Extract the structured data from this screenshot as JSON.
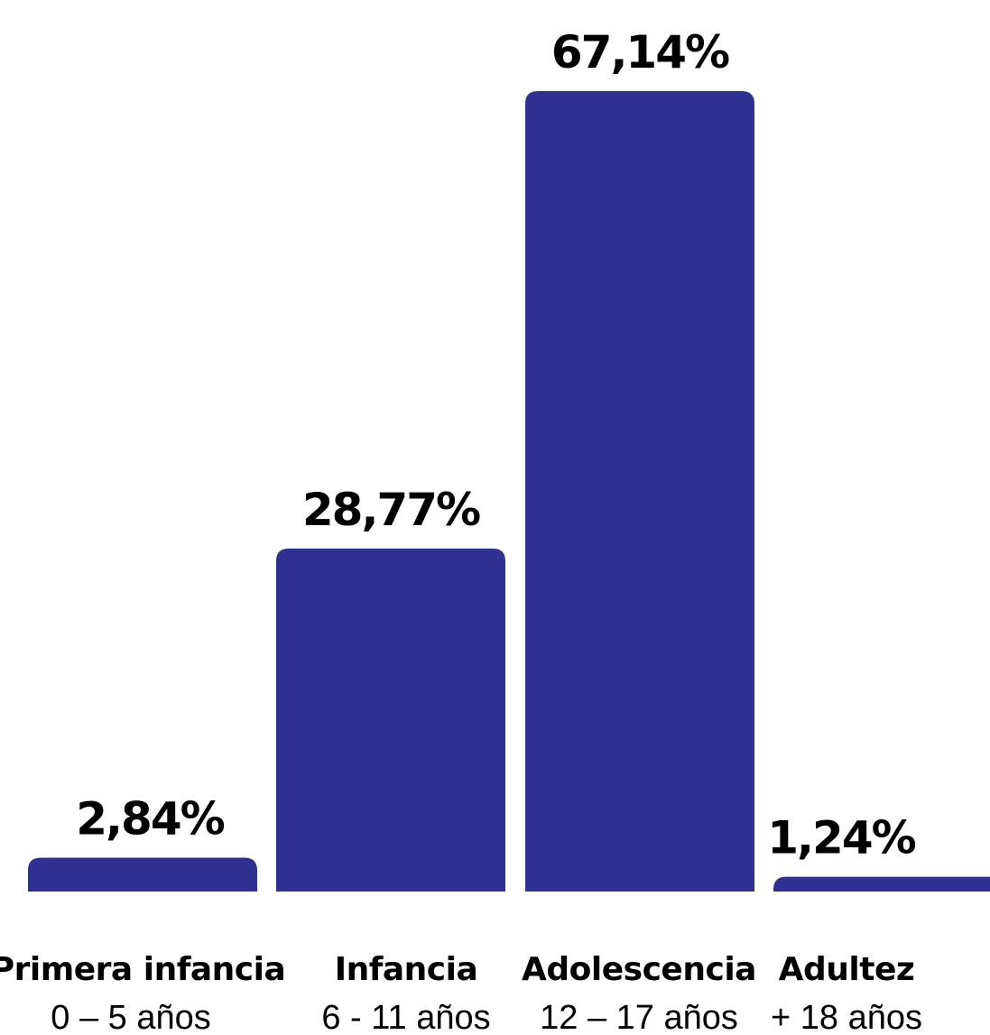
{
  "chart_data": {
    "type": "bar",
    "categories": [
      "Primera infancia",
      "Infancia",
      "Adolescencia",
      "Adultez"
    ],
    "ranges": [
      "0 – 5 años",
      "6 - 11 años",
      "12 – 17 años",
      "+ 18 años"
    ],
    "values": [
      2.84,
      28.77,
      67.14,
      1.24
    ],
    "value_labels": [
      "2,84%",
      "28,77%",
      "67,14%",
      "1,24%"
    ],
    "title": "",
    "xlabel": "",
    "ylabel": "",
    "ylim": [
      0,
      70
    ],
    "grid": false,
    "legend": "none",
    "bar_color": "#2e3192",
    "label_color": "#000000"
  }
}
